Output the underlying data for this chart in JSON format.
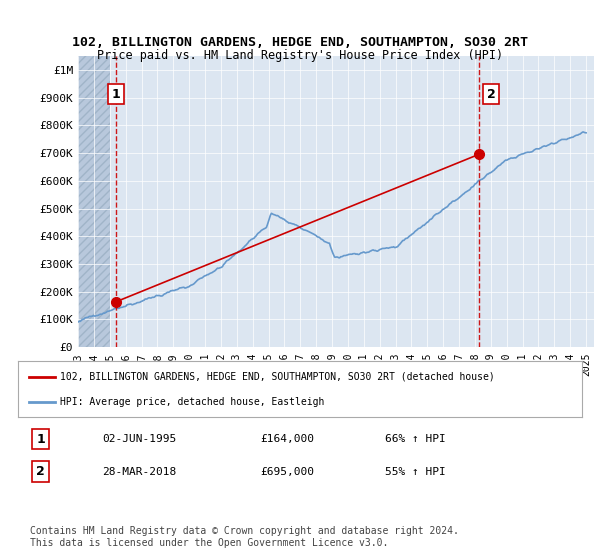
{
  "title": "102, BILLINGTON GARDENS, HEDGE END, SOUTHAMPTON, SO30 2RT",
  "subtitle": "Price paid vs. HM Land Registry's House Price Index (HPI)",
  "ylabel_ticks": [
    "£0",
    "£100K",
    "£200K",
    "£300K",
    "£400K",
    "£500K",
    "£600K",
    "£700K",
    "£800K",
    "£900K",
    "£1M"
  ],
  "ytick_values": [
    0,
    100000,
    200000,
    300000,
    400000,
    500000,
    600000,
    700000,
    800000,
    900000,
    1000000
  ],
  "ylim": [
    0,
    1050000
  ],
  "xlim_start": 1993.0,
  "xlim_end": 2025.5,
  "bg_color": "#dce6f1",
  "hatch_color": "#b8c8dc",
  "grid_color": "#ffffff",
  "red_line_color": "#cc0000",
  "blue_line_color": "#6699cc",
  "point1_x": 1995.42,
  "point1_y": 164000,
  "point2_x": 2018.23,
  "point2_y": 695000,
  "annotation1_label": "1",
  "annotation2_label": "2",
  "legend_line1": "102, BILLINGTON GARDENS, HEDGE END, SOUTHAMPTON, SO30 2RT (detached house)",
  "legend_line2": "HPI: Average price, detached house, Eastleigh",
  "note1_date": "02-JUN-1995",
  "note1_price": "£164,000",
  "note1_hpi": "66% ↑ HPI",
  "note2_date": "28-MAR-2018",
  "note2_price": "£695,000",
  "note2_hpi": "55% ↑ HPI",
  "footer": "Contains HM Land Registry data © Crown copyright and database right 2024.\nThis data is licensed under the Open Government Licence v3.0."
}
